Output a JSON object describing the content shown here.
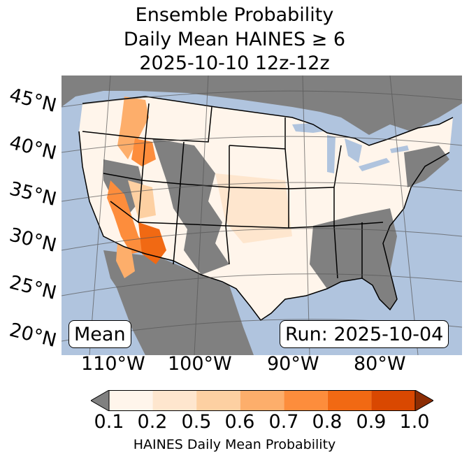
{
  "title": {
    "line1": "Ensemble Probability",
    "line2": "Daily Mean HAINES ≥ 6",
    "line3": "2025-10-10 12z-12z"
  },
  "map": {
    "lat_labels": [
      "45°N",
      "40°N",
      "35°N",
      "30°N",
      "25°N",
      "20°N"
    ],
    "lon_labels": [
      "110°W",
      "100°W",
      "90°W",
      "80°W"
    ],
    "colors": {
      "ocean": "#b0c4de",
      "land_missing": "#808080",
      "border": "#000000",
      "gridline": "#555555"
    }
  },
  "badges": {
    "left": "Mean",
    "right": "Run: 2025-10-04"
  },
  "colorbar": {
    "ticks": [
      "0.1",
      "0.2",
      "0.5",
      "0.6",
      "0.7",
      "0.8",
      "0.9",
      "1.0"
    ],
    "label": "HAINES Daily Mean Probability",
    "colors": [
      "#fff5eb",
      "#fee6ce",
      "#fdd0a2",
      "#fdae6b",
      "#fd8d3c",
      "#f16913",
      "#d94801"
    ],
    "under_color": "#808080",
    "over_color": "#8c2d04"
  }
}
